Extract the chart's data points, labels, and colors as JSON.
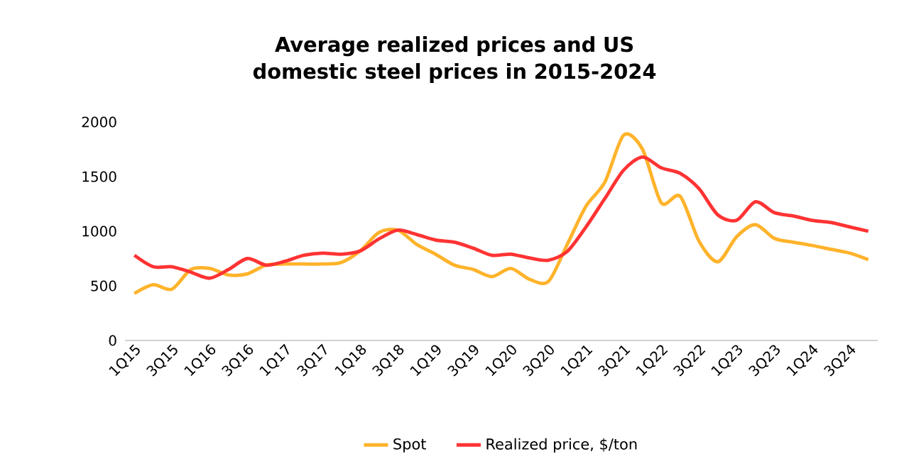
{
  "chart_data": {
    "type": "line",
    "title": "Average realized prices and US domestic steel prices in 2015-2024",
    "categories": [
      "1Q15",
      null,
      "3Q15",
      null,
      "1Q16",
      null,
      "3Q16",
      null,
      "1Q17",
      null,
      "3Q17",
      null,
      "1Q18",
      null,
      "3Q18",
      null,
      "1Q19",
      null,
      "3Q19",
      null,
      "1Q20",
      null,
      "3Q20",
      null,
      "1Q21",
      null,
      "3Q21",
      null,
      "1Q22",
      null,
      "3Q22",
      null,
      "1Q23",
      null,
      "3Q23",
      null,
      "1Q24",
      null,
      "3Q24",
      null
    ],
    "series": [
      {
        "name": "Spot",
        "color": "#ffb32b",
        "values": [
          430,
          510,
          470,
          650,
          660,
          600,
          610,
          690,
          700,
          700,
          700,
          715,
          820,
          990,
          1010,
          880,
          790,
          690,
          650,
          585,
          660,
          560,
          540,
          880,
          1230,
          1450,
          1880,
          1750,
          1260,
          1320,
          910,
          720,
          950,
          1060,
          935,
          900,
          870,
          835,
          800,
          740
        ]
      },
      {
        "name": "Realized price, $/ton",
        "color": "#ff3333",
        "values": [
          780,
          675,
          675,
          625,
          570,
          650,
          750,
          690,
          725,
          780,
          800,
          790,
          820,
          930,
          1010,
          970,
          920,
          900,
          845,
          780,
          790,
          755,
          735,
          815,
          1040,
          1300,
          1560,
          1680,
          1580,
          1530,
          1390,
          1150,
          1100,
          1270,
          1170,
          1140,
          1100,
          1080,
          1040,
          1000
        ]
      }
    ],
    "ylim": [
      0,
      2000
    ],
    "yticks": [
      0,
      500,
      1000,
      1500,
      2000
    ],
    "legend": "bottom",
    "marker": "none",
    "line_style": "solid"
  }
}
